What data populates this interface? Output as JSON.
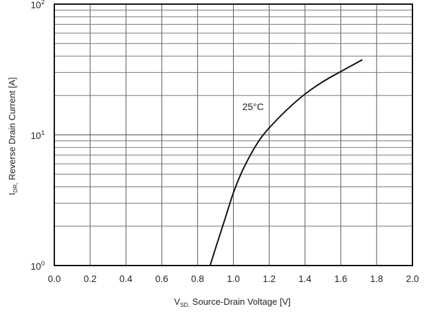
{
  "chart_data": {
    "type": "line",
    "x_axis": {
      "label_main": "V",
      "label_sub": "SD,",
      "label_rest": " Source-Drain Voltage [V]",
      "range": [
        0.0,
        2.0
      ],
      "ticks": [
        "0.0",
        "0.2",
        "0.4",
        "0.6",
        "0.8",
        "1.0",
        "1.2",
        "1.4",
        "1.6",
        "1.8",
        "2.0"
      ],
      "tick_values": [
        0.0,
        0.2,
        0.4,
        0.6,
        0.8,
        1.0,
        1.2,
        1.4,
        1.6,
        1.8,
        2.0
      ]
    },
    "y_axis": {
      "label_main": "I",
      "label_sub": "DR,",
      "label_rest": " Reverse Drain Current [A]",
      "scale": "log",
      "range": [
        1,
        100
      ],
      "ticks": [
        {
          "base": "10",
          "exp": "2",
          "value": 100
        },
        {
          "base": "10",
          "exp": "1",
          "value": 10
        },
        {
          "base": "10",
          "exp": "0",
          "value": 1
        }
      ]
    },
    "grid": true,
    "series": [
      {
        "name": "25°C",
        "x": [
          0.87,
          0.9,
          0.95,
          1.0,
          1.05,
          1.1,
          1.15,
          1.2,
          1.3,
          1.4,
          1.5,
          1.6,
          1.72
        ],
        "y": [
          1.0,
          1.35,
          2.2,
          3.6,
          5.3,
          7.2,
          9.3,
          11.3,
          15.6,
          20.5,
          25.5,
          30.5,
          37.5
        ]
      }
    ],
    "annotations": [
      {
        "text": "25°C",
        "x": 1.05,
        "y": 15.5
      }
    ]
  }
}
